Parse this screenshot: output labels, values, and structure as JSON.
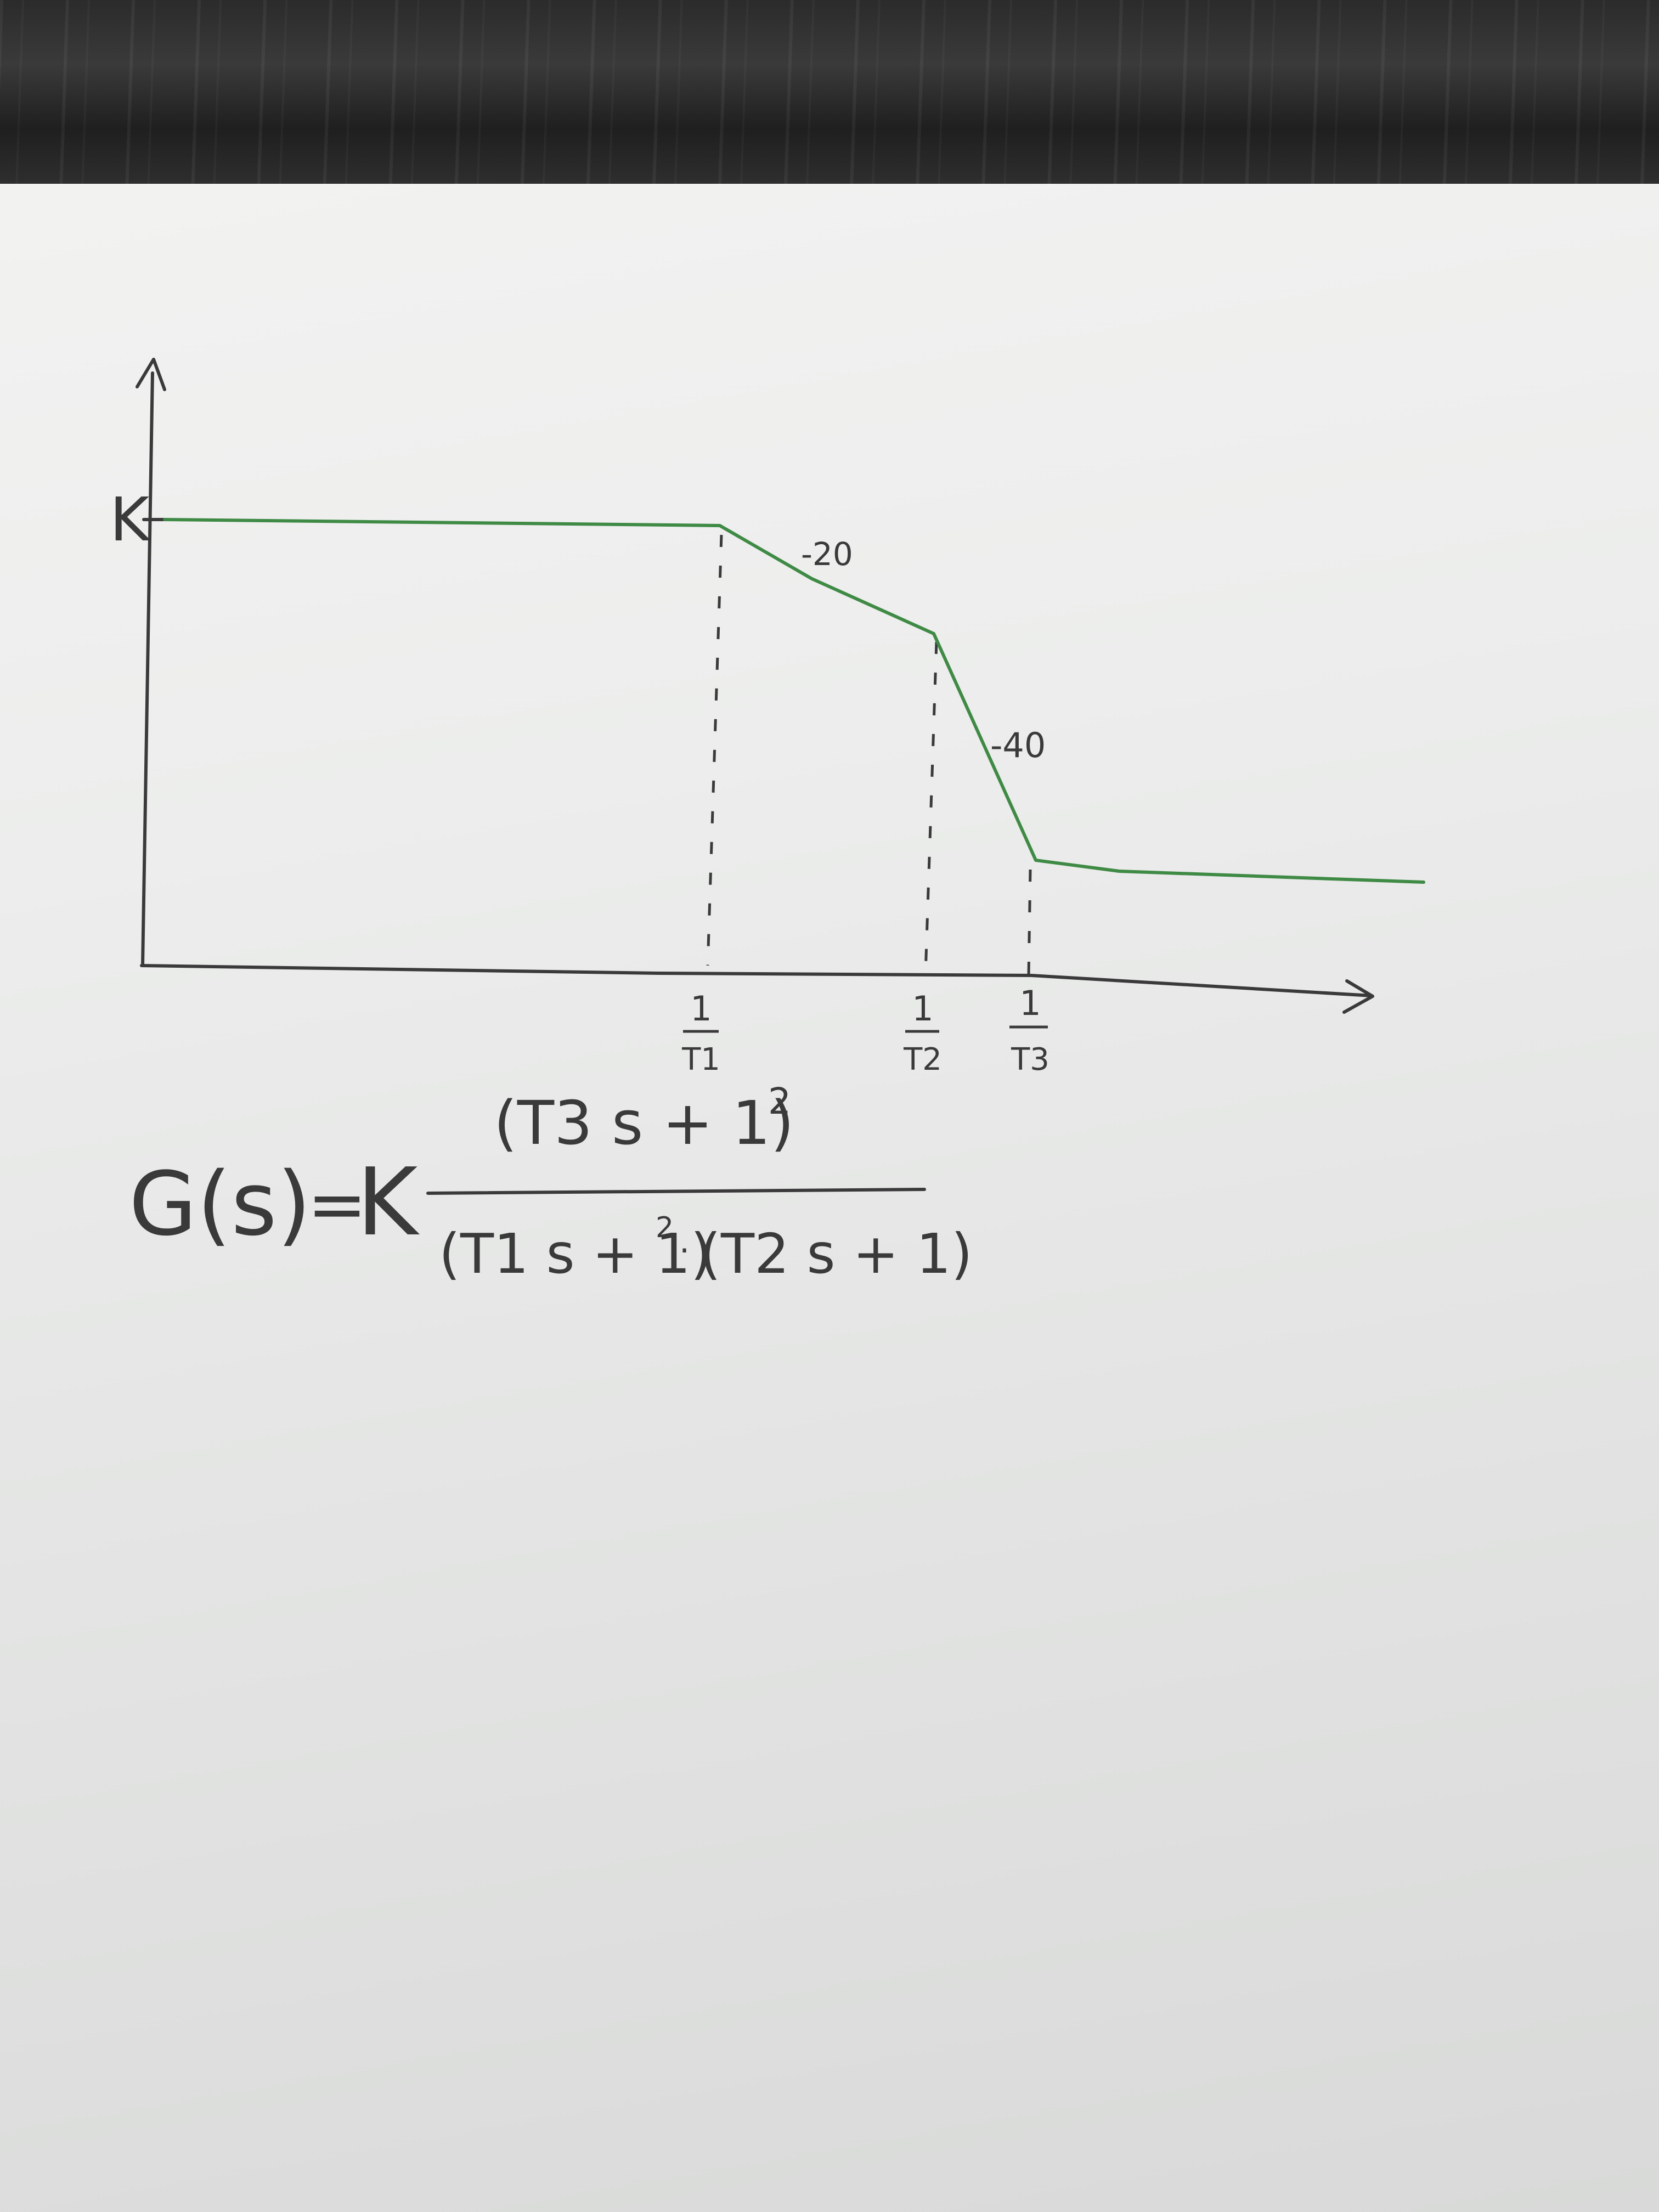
{
  "colors": {
    "pen": "#3a3a3a",
    "curve": "#3f8a45",
    "paper": "#ededec",
    "desk": "#2b2b2b"
  },
  "chart_data": {
    "type": "line",
    "title": "",
    "xlabel": "",
    "ylabel": "",
    "y_axis_label": "K",
    "x_ticks": [
      {
        "num": "1",
        "den": "T1"
      },
      {
        "num": "1",
        "den": "T2"
      },
      {
        "num": "1",
        "den": "T3"
      }
    ],
    "series": [
      {
        "points": [
          {
            "x": "0",
            "y": "K"
          },
          {
            "x": "1/T1",
            "y": "K"
          },
          {
            "x": "1/T2",
            "y": "K - 20 dB/dec"
          },
          {
            "x": "1/T3",
            "y": "K - 20 - 40 dB/dec"
          },
          {
            "x": "end",
            "y": "constant"
          }
        ]
      }
    ],
    "slope_labels": [
      "-20",
      "-40"
    ],
    "grid": false,
    "axes_style": "hand-drawn asymptotic Bode magnitude plot"
  },
  "formula": {
    "lhs": "G(s)",
    "equals": "=",
    "gain": "K",
    "numerator": "(T3 s + 1)",
    "numerator_exponent": "2",
    "denominator_part1": "(T1 s + 1)",
    "denominator_part1_exponent": "2",
    "denominator_part2": "(T2 s + 1)"
  }
}
